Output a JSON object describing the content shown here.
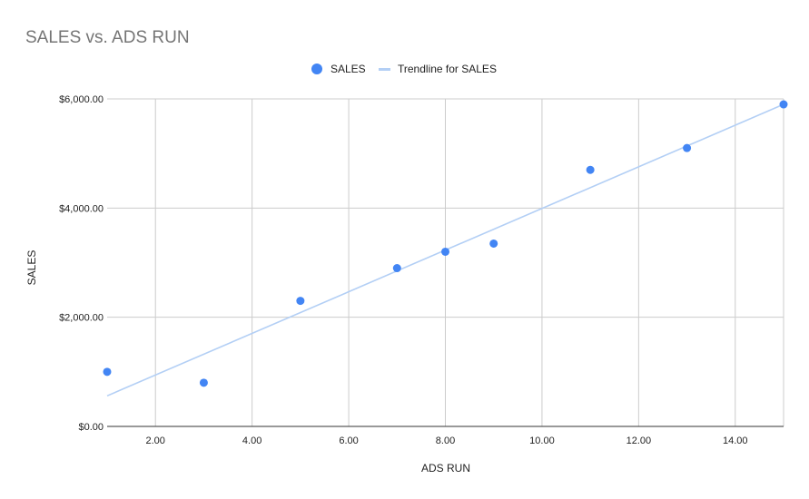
{
  "chart_data": {
    "type": "scatter",
    "title": "SALES vs. ADS RUN",
    "xlabel": "ADS RUN",
    "ylabel": "SALES",
    "xlim": [
      1,
      15
    ],
    "ylim": [
      0,
      6000
    ],
    "x_ticks": [
      2,
      4,
      6,
      8,
      10,
      12,
      14
    ],
    "x_tick_labels": [
      "2.00",
      "4.00",
      "6.00",
      "8.00",
      "10.00",
      "12.00",
      "14.00"
    ],
    "y_ticks": [
      0,
      2000,
      4000,
      6000
    ],
    "y_tick_labels": [
      "$0.00",
      "$2,000.00",
      "$4,000.00",
      "$6,000.00"
    ],
    "grid": true,
    "legend_position": "top-center",
    "series": [
      {
        "name": "SALES",
        "color": "#4285f4",
        "points": [
          {
            "x": 1,
            "y": 1000
          },
          {
            "x": 3,
            "y": 800
          },
          {
            "x": 5,
            "y": 2300
          },
          {
            "x": 7,
            "y": 2900
          },
          {
            "x": 8,
            "y": 3200
          },
          {
            "x": 9,
            "y": 3350
          },
          {
            "x": 11,
            "y": 4700
          },
          {
            "x": 13,
            "y": 5100
          },
          {
            "x": 15,
            "y": 5900
          }
        ]
      }
    ],
    "trendline": {
      "name": "Trendline for SALES",
      "color": "#b3cff5",
      "type": "linear",
      "start": {
        "x": 1,
        "y": 560
      },
      "end": {
        "x": 15,
        "y": 5900
      }
    }
  }
}
